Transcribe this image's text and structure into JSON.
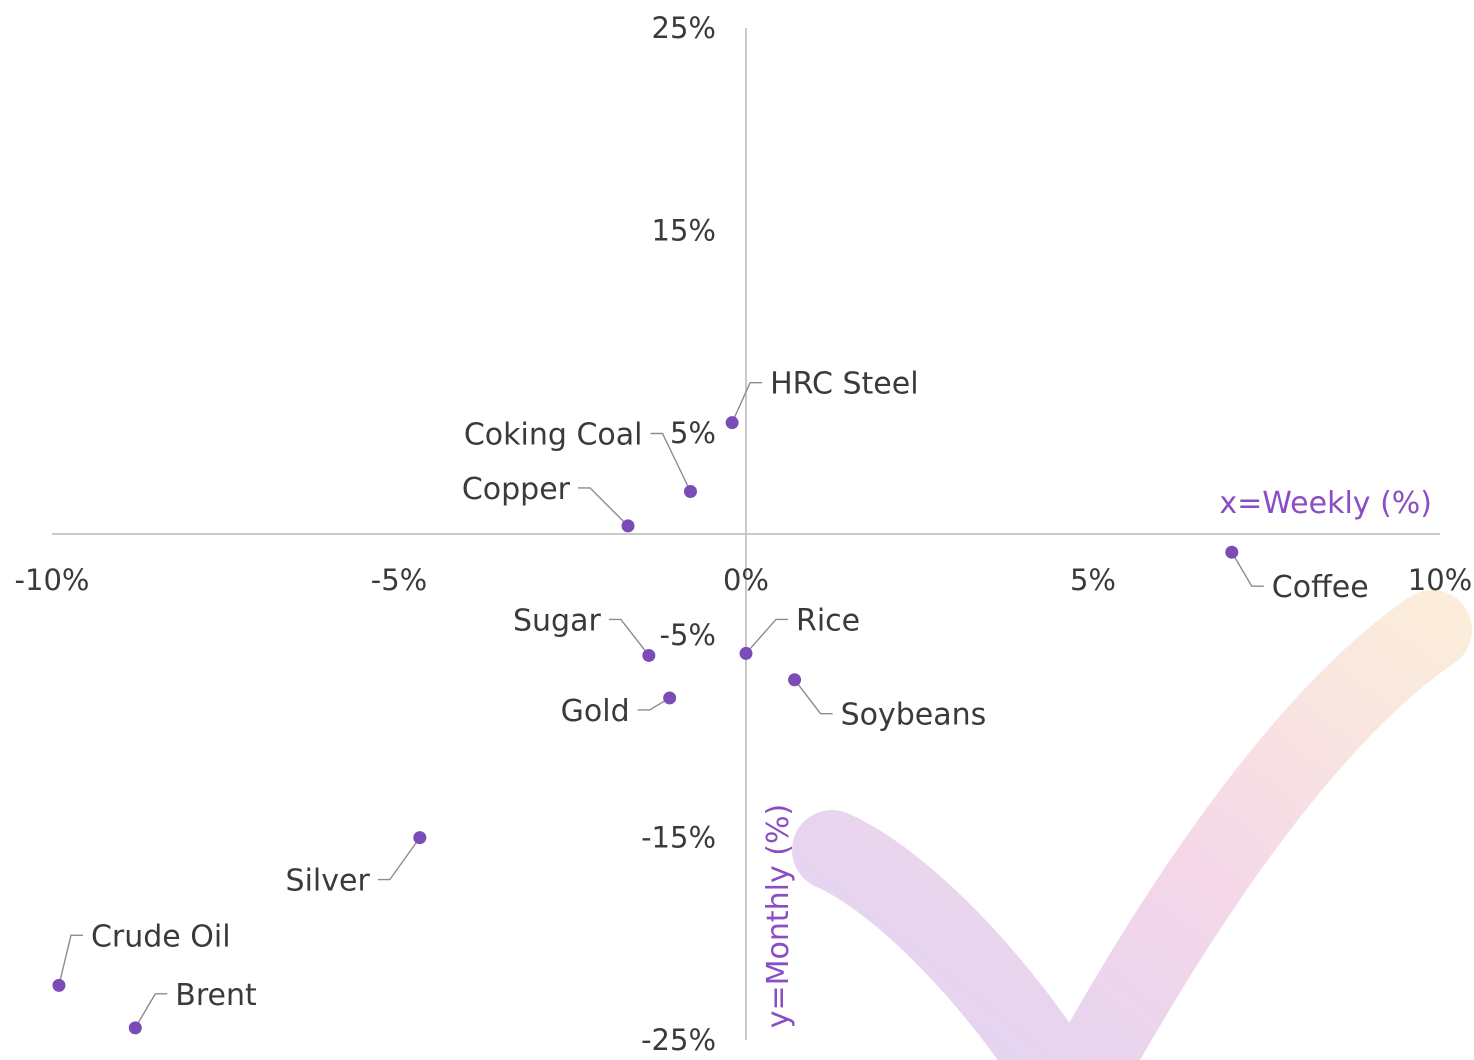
{
  "chart_data": {
    "type": "scatter",
    "xlabel": "x=Weekly (%)",
    "ylabel": "y=Monthly (%)",
    "xlim": [
      -10,
      10
    ],
    "ylim": [
      -25,
      25
    ],
    "x_ticks": [
      "-10%",
      "-5%",
      "0%",
      "5%",
      "10%"
    ],
    "x_tick_values": [
      -10,
      -5,
      0,
      5,
      10
    ],
    "y_ticks": [
      "25%",
      "15%",
      "5%",
      "-5%",
      "-15%",
      "-25%"
    ],
    "y_tick_values": [
      25,
      15,
      5,
      -5,
      -15,
      -25
    ],
    "grid": false,
    "point_color": "#7b4bb8",
    "axis_title_color": "#8a4dc4",
    "points": [
      {
        "name": "HRC Steel",
        "x": -0.2,
        "y": 5.5
      },
      {
        "name": "Coking Coal",
        "x": -0.8,
        "y": 2.1
      },
      {
        "name": "Copper",
        "x": -1.7,
        "y": 0.4
      },
      {
        "name": "Coffee",
        "x": 7.0,
        "y": -0.9
      },
      {
        "name": "Sugar",
        "x": -1.4,
        "y": -6.0
      },
      {
        "name": "Rice",
        "x": 0.0,
        "y": -5.9
      },
      {
        "name": "Soybeans",
        "x": 0.7,
        "y": -7.2
      },
      {
        "name": "Gold",
        "x": -1.1,
        "y": -8.1
      },
      {
        "name": "Silver",
        "x": -4.7,
        "y": -15.0
      },
      {
        "name": "Crude Oil",
        "x": -9.9,
        "y": -22.3
      },
      {
        "name": "Brent",
        "x": -8.8,
        "y": -24.4
      }
    ]
  }
}
